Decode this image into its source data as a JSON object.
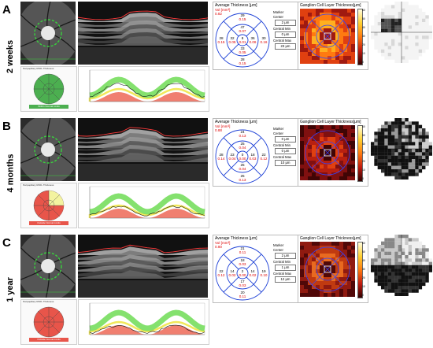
{
  "panels": [
    {
      "letter": "A",
      "timepoint": "2 weeks",
      "thickness_title": "Average Thickness [μm]",
      "vol_label": "Vol [mm³]",
      "vol_value": "0.82",
      "grid": [
        {
          "pos": "outer-top",
          "n": "29",
          "r": "0.15"
        },
        {
          "pos": "inner-top",
          "n": "47",
          "r": "0.07"
        },
        {
          "pos": "outer-left",
          "n": "28",
          "r": "0.15"
        },
        {
          "pos": "inner-left",
          "n": "32",
          "r": "0.05"
        },
        {
          "pos": "center",
          "n": "8",
          "r": "0.01"
        },
        {
          "pos": "inner-right",
          "n": "36",
          "r": "0.06"
        },
        {
          "pos": "outer-right",
          "n": "30",
          "r": "0.16"
        },
        {
          "pos": "inner-bottom",
          "n": "33",
          "r": "0.05"
        },
        {
          "pos": "outer-bottom",
          "n": "28",
          "r": "0.15"
        }
      ],
      "stats": [
        {
          "label": "Center",
          "value": "2 μm"
        },
        {
          "label": "Central Min",
          "value": "0 μm"
        },
        {
          "label": "Central Max",
          "value": "23 μm"
        }
      ],
      "gcl_title": "Ganglion Cell Layer Thickness[μm]",
      "scale_ticks": [
        "60",
        "50",
        "40",
        "30",
        "20",
        "10",
        "0"
      ],
      "rnfl_header": "Peripapillary RNFL Thickness",
      "rnfl_badge": "Within Normal Limits",
      "rnfl_status_color": "#4caf50"
    },
    {
      "letter": "B",
      "timepoint": "4 months",
      "thickness_title": "Average Thickness [μm]",
      "vol_label": "Vol [mm³]",
      "vol_value": "0.88",
      "grid": [
        {
          "pos": "outer-top",
          "n": "24",
          "r": "0.13"
        },
        {
          "pos": "inner-top",
          "n": "25",
          "r": "0.04"
        },
        {
          "pos": "outer-left",
          "n": "28",
          "r": "0.14"
        },
        {
          "pos": "inner-left",
          "n": "23",
          "r": "0.04"
        },
        {
          "pos": "center",
          "n": "0",
          "r": "0.00"
        },
        {
          "pos": "inner-right",
          "n": "18",
          "r": "0.03"
        },
        {
          "pos": "outer-right",
          "n": "22",
          "r": "0.12"
        },
        {
          "pos": "inner-bottom",
          "n": "25",
          "r": "0.04"
        },
        {
          "pos": "outer-bottom",
          "n": "25",
          "r": "0.13"
        }
      ],
      "stats": [
        {
          "label": "Center",
          "value": "0 μm"
        },
        {
          "label": "Central Min",
          "value": "0 μm"
        },
        {
          "label": "Central Max",
          "value": "10 μm"
        }
      ],
      "gcl_title": "Ganglion Cell Layer Thickness[μm]",
      "scale_ticks": [
        "60",
        "50",
        "40",
        "30",
        "20",
        "10",
        "0"
      ],
      "rnfl_header": "Peripapillary RNFL Thickness",
      "rnfl_badge": "Outside Normal Limits",
      "rnfl_status_color": "#e8554a"
    },
    {
      "letter": "C",
      "timepoint": "1 year",
      "thickness_title": "Average Thickness [μm]",
      "vol_label": "Vol [mm³]",
      "vol_value": "0.80",
      "grid": [
        {
          "pos": "outer-top",
          "n": "21",
          "r": "0.11"
        },
        {
          "pos": "inner-top",
          "n": "18",
          "r": "0.03"
        },
        {
          "pos": "outer-left",
          "n": "22",
          "r": "0.12"
        },
        {
          "pos": "inner-left",
          "n": "14",
          "r": "0.02"
        },
        {
          "pos": "center",
          "n": "2",
          "r": "0.00"
        },
        {
          "pos": "inner-right",
          "n": "14",
          "r": "0.02"
        },
        {
          "pos": "outer-right",
          "n": "19",
          "r": "0.10"
        },
        {
          "pos": "inner-bottom",
          "n": "17",
          "r": "0.03"
        },
        {
          "pos": "outer-bottom",
          "n": "20",
          "r": "0.11"
        }
      ],
      "stats": [
        {
          "label": "Center",
          "value": "2 μm"
        },
        {
          "label": "Central Min",
          "value": "1 μm"
        },
        {
          "label": "Central Max",
          "value": "12 μm"
        }
      ],
      "gcl_title": "Ganglion Cell Layer Thickness[μm]",
      "scale_ticks": [
        "60",
        "50",
        "40",
        "30",
        "20",
        "10",
        "0"
      ],
      "rnfl_header": "Peripapillary RNFL Thickness",
      "rnfl_badge": "Outside Normal Limits",
      "rnfl_status_color": "#e8554a"
    }
  ],
  "marker_label": "Marker",
  "colors": {
    "grid_ring": "#1c3fd6",
    "red_value": "#dd0000",
    "green_band": "#6fdc55",
    "red_band": "#f07f70",
    "scan_bg": "#3a3a3a"
  }
}
